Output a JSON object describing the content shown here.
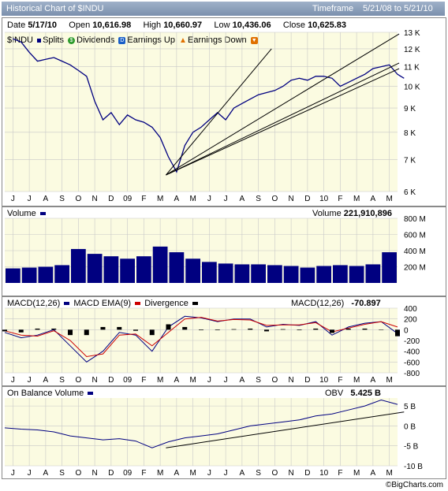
{
  "title_bar": {
    "title": "Historical Chart of $INDU",
    "timeframe_label": "Timeframe",
    "range": "5/21/08 to  5/21/10"
  },
  "quote": {
    "date_label": "Date",
    "date": "5/17/10",
    "open_label": "Open",
    "open": "10,616.98",
    "high_label": "High",
    "high": "10,660.97",
    "low_label": "Low",
    "low": "10,436.06",
    "close_label": "Close",
    "close": "10,625.83"
  },
  "legend_price": {
    "symbol": "$INDU",
    "splits": "Splits",
    "dividends": "Dividends",
    "earn_up": "Earnings Up",
    "earn_down": "Earnings Down"
  },
  "volume_panel": {
    "label": "Volume",
    "value_label": "Volume",
    "value": "221,910,896"
  },
  "macd_panel": {
    "macd": "MACD(12,26)",
    "ema": "MACD EMA(9)",
    "div": "Divergence",
    "value_label": "MACD(12,26)",
    "value": "-70.897"
  },
  "obv_panel": {
    "label": "On Balance Volume",
    "value_label": "OBV",
    "value": "5.425 B"
  },
  "footer": "©BigCharts.com",
  "colors": {
    "line": "#000080",
    "bg": "#fbfbe1",
    "macd_ema": "#cc0000",
    "grid": "#c8c8c8"
  },
  "chart_data": [
    {
      "type": "line",
      "name": "price",
      "x_tick_labels": [
        "J",
        "J",
        "A",
        "S",
        "O",
        "N",
        "D",
        "09",
        "F",
        "M",
        "A",
        "M",
        "J",
        "J",
        "A",
        "S",
        "O",
        "N",
        "D",
        "10",
        "F",
        "M",
        "A",
        "M"
      ],
      "y_tick_labels": [
        "13 K",
        "12 K",
        "11 K",
        "10 K",
        "9 K",
        "8 K",
        "7 K",
        "6 K"
      ],
      "ylim": [
        6000,
        13000
      ],
      "y_scale": "log",
      "x_months": [
        0,
        0.5,
        1,
        1.5,
        2,
        2.5,
        3,
        3.5,
        4,
        4.5,
        5,
        5.5,
        6,
        6.5,
        7,
        7.5,
        8,
        8.5,
        9,
        9.5,
        10,
        10.5,
        11,
        11.5,
        12,
        12.5,
        13,
        13.5,
        14,
        14.5,
        15,
        15.5,
        16,
        16.5,
        17,
        17.5,
        18,
        18.5,
        19,
        19.5,
        20,
        20.5,
        21,
        21.5,
        22,
        22.5,
        23,
        23.5,
        23.9
      ],
      "values": [
        12600,
        12400,
        11800,
        11300,
        11400,
        11500,
        11300,
        11100,
        10800,
        10500,
        9300,
        8500,
        8800,
        8300,
        8700,
        8500,
        8400,
        8200,
        7800,
        7100,
        6600,
        7500,
        8000,
        8200,
        8500,
        8800,
        8500,
        9000,
        9200,
        9400,
        9600,
        9700,
        9800,
        10000,
        10300,
        10400,
        10300,
        10500,
        10500,
        10400,
        10000,
        10200,
        10400,
        10600,
        10900,
        11000,
        11100,
        10600,
        10400
      ],
      "trend_lines": [
        [
          [
            9.35,
            6500
          ],
          [
            15.8,
            12000
          ]
        ],
        [
          [
            9.35,
            6500
          ],
          [
            23.6,
            12900
          ]
        ],
        [
          [
            9.35,
            6500
          ],
          [
            23.6,
            11200
          ]
        ],
        [
          [
            9.35,
            6500
          ],
          [
            23.6,
            10900
          ]
        ]
      ]
    },
    {
      "type": "bar",
      "name": "volume",
      "y_tick_labels": [
        "800 M",
        "600 M",
        "400 M",
        "200 M"
      ],
      "ylim": [
        0,
        800
      ],
      "months": [
        "J",
        "J",
        "A",
        "S",
        "O",
        "N",
        "D",
        "09",
        "F",
        "M",
        "A",
        "M",
        "J",
        "J",
        "A",
        "S",
        "O",
        "N",
        "D",
        "10",
        "F",
        "M",
        "A",
        "M"
      ],
      "values": [
        180,
        190,
        200,
        220,
        420,
        360,
        330,
        300,
        330,
        450,
        380,
        300,
        260,
        240,
        230,
        230,
        220,
        210,
        190,
        210,
        220,
        210,
        230,
        380
      ]
    },
    {
      "type": "line",
      "name": "macd",
      "y_tick_labels": [
        "400",
        "200",
        "0",
        "-200",
        "-400",
        "-600",
        "-800"
      ],
      "ylim": [
        -800,
        400
      ],
      "series": [
        {
          "name": "MACD(12,26)",
          "values": [
            -50,
            -150,
            -100,
            0,
            -300,
            -600,
            -400,
            -50,
            -100,
            -400,
            50,
            250,
            220,
            150,
            200,
            200,
            50,
            100,
            80,
            150,
            -100,
            50,
            120,
            150,
            -71
          ]
        },
        {
          "name": "MACD EMA(9)",
          "values": [
            -20,
            -100,
            -120,
            -20,
            -200,
            -500,
            -450,
            -100,
            -80,
            -300,
            -50,
            200,
            230,
            160,
            190,
            180,
            80,
            90,
            90,
            130,
            -40,
            30,
            100,
            150,
            50
          ]
        }
      ]
    },
    {
      "type": "line",
      "name": "obv",
      "y_tick_labels": [
        "5 B",
        "0 B",
        "-5 B",
        "-10 B"
      ],
      "ylim": [
        -10,
        7
      ],
      "values": [
        -0.5,
        -0.8,
        -1.0,
        -1.5,
        -2.5,
        -3.0,
        -3.5,
        -3.2,
        -3.8,
        -5.5,
        -4.0,
        -3.0,
        -2.5,
        -2.0,
        -1.0,
        0.0,
        0.5,
        1.0,
        1.5,
        2.5,
        3.0,
        4.0,
        5.0,
        6.5,
        5.4
      ],
      "trend_lines": [
        [
          [
            9.35,
            -5.5
          ],
          [
            23.9,
            3.5
          ]
        ]
      ]
    }
  ]
}
